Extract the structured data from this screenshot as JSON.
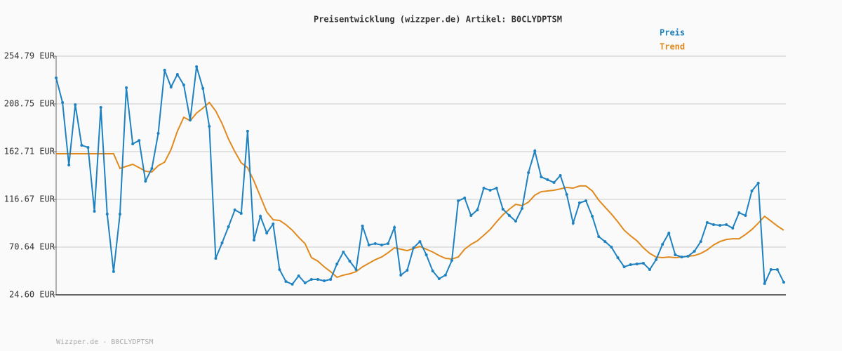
{
  "chart_data": {
    "type": "line",
    "title": "Preisentwicklung (wizzper.de) Artikel: B0CLYDPTSM",
    "footer": "Wizzper.de - B0CLYDPTSM",
    "ylim": [
      24.6,
      254.79
    ],
    "yticks": [
      {
        "value": 24.6,
        "label": "24.60 EUR"
      },
      {
        "value": 70.64,
        "label": "70.64 EUR"
      },
      {
        "value": 116.67,
        "label": "116.67 EUR"
      },
      {
        "value": 162.71,
        "label": "162.71 EUR"
      },
      {
        "value": 208.75,
        "label": "208.75 EUR"
      },
      {
        "value": 254.79,
        "label": "254.79 EUR"
      }
    ],
    "grid": true,
    "series": [
      {
        "name": "Preis",
        "color": "#1f82c0",
        "markers": true,
        "values": [
          233.8,
          210.1,
          149.8,
          208.0,
          168.8,
          166.8,
          105.2,
          205.4,
          102.5,
          47.0,
          102.5,
          224.3,
          170.2,
          173.5,
          134.3,
          146.5,
          180.3,
          241.3,
          225.0,
          237.2,
          227.0,
          193.2,
          244.6,
          223.7,
          187.1,
          59.8,
          74.7,
          90.3,
          106.5,
          103.1,
          182.4,
          77.4,
          100.4,
          84.2,
          93.0,
          49.0,
          37.5,
          34.8,
          42.9,
          36.1,
          39.5,
          39.5,
          38.1,
          39.5,
          54.4,
          65.9,
          57.1,
          49.0,
          91.0,
          72.7,
          74.0,
          72.7,
          74.0,
          89.6,
          43.6,
          48.3,
          70.0,
          76.0,
          63.2,
          47.6,
          40.2,
          43.6,
          57.8,
          115.3,
          118.0,
          101.1,
          106.5,
          127.5,
          125.5,
          127.5,
          107.2,
          101.1,
          95.7,
          107.9,
          142.4,
          163.4,
          138.3,
          135.6,
          132.9,
          139.7,
          121.4,
          93.7,
          113.3,
          115.3,
          100.4,
          80.8,
          76.0,
          70.6,
          60.5,
          51.6,
          53.7,
          54.4,
          55.1,
          49.0,
          58.5,
          73.3,
          84.2,
          63.2,
          61.1,
          61.8,
          66.6,
          76.0,
          94.3,
          92.3,
          91.6,
          92.3,
          88.9,
          103.8,
          101.1,
          124.8,
          132.3,
          35.4,
          49.0,
          49.0,
          36.8
        ]
      },
      {
        "name": "Trend",
        "color": "#e08a1e",
        "markers": false,
        "values": [
          160.7,
          160.7,
          160.7,
          160.7,
          160.7,
          160.7,
          160.7,
          160.7,
          160.7,
          160.7,
          146.5,
          148.5,
          150.5,
          147.2,
          143.8,
          143.1,
          149.2,
          152.6,
          164.7,
          182.4,
          195.9,
          192.5,
          199.9,
          204.7,
          210.1,
          202.0,
          189.8,
          174.9,
          162.7,
          151.9,
          147.2,
          134.3,
          119.4,
          104.5,
          97.0,
          96.4,
          92.3,
          86.9,
          80.1,
          74.0,
          60.5,
          57.1,
          51.6,
          47.0,
          41.5,
          43.6,
          44.9,
          47.0,
          51.6,
          55.1,
          58.5,
          61.1,
          65.2,
          70.0,
          68.6,
          67.2,
          69.3,
          71.3,
          68.6,
          65.9,
          62.5,
          59.8,
          59.1,
          61.1,
          68.6,
          73.3,
          76.7,
          82.1,
          87.6,
          95.0,
          101.8,
          107.2,
          111.9,
          110.6,
          114.0,
          120.7,
          124.1,
          124.8,
          125.5,
          126.8,
          128.2,
          127.5,
          129.6,
          129.6,
          124.8,
          116.0,
          109.2,
          102.5,
          95.0,
          86.9,
          81.5,
          76.7,
          70.0,
          64.6,
          61.1,
          60.5,
          61.1,
          60.5,
          61.1,
          61.8,
          62.5,
          64.6,
          67.9,
          72.7,
          76.0,
          78.0,
          78.7,
          78.7,
          82.8,
          87.6,
          93.7,
          100.4,
          95.7,
          91.0,
          86.9
        ]
      }
    ]
  }
}
